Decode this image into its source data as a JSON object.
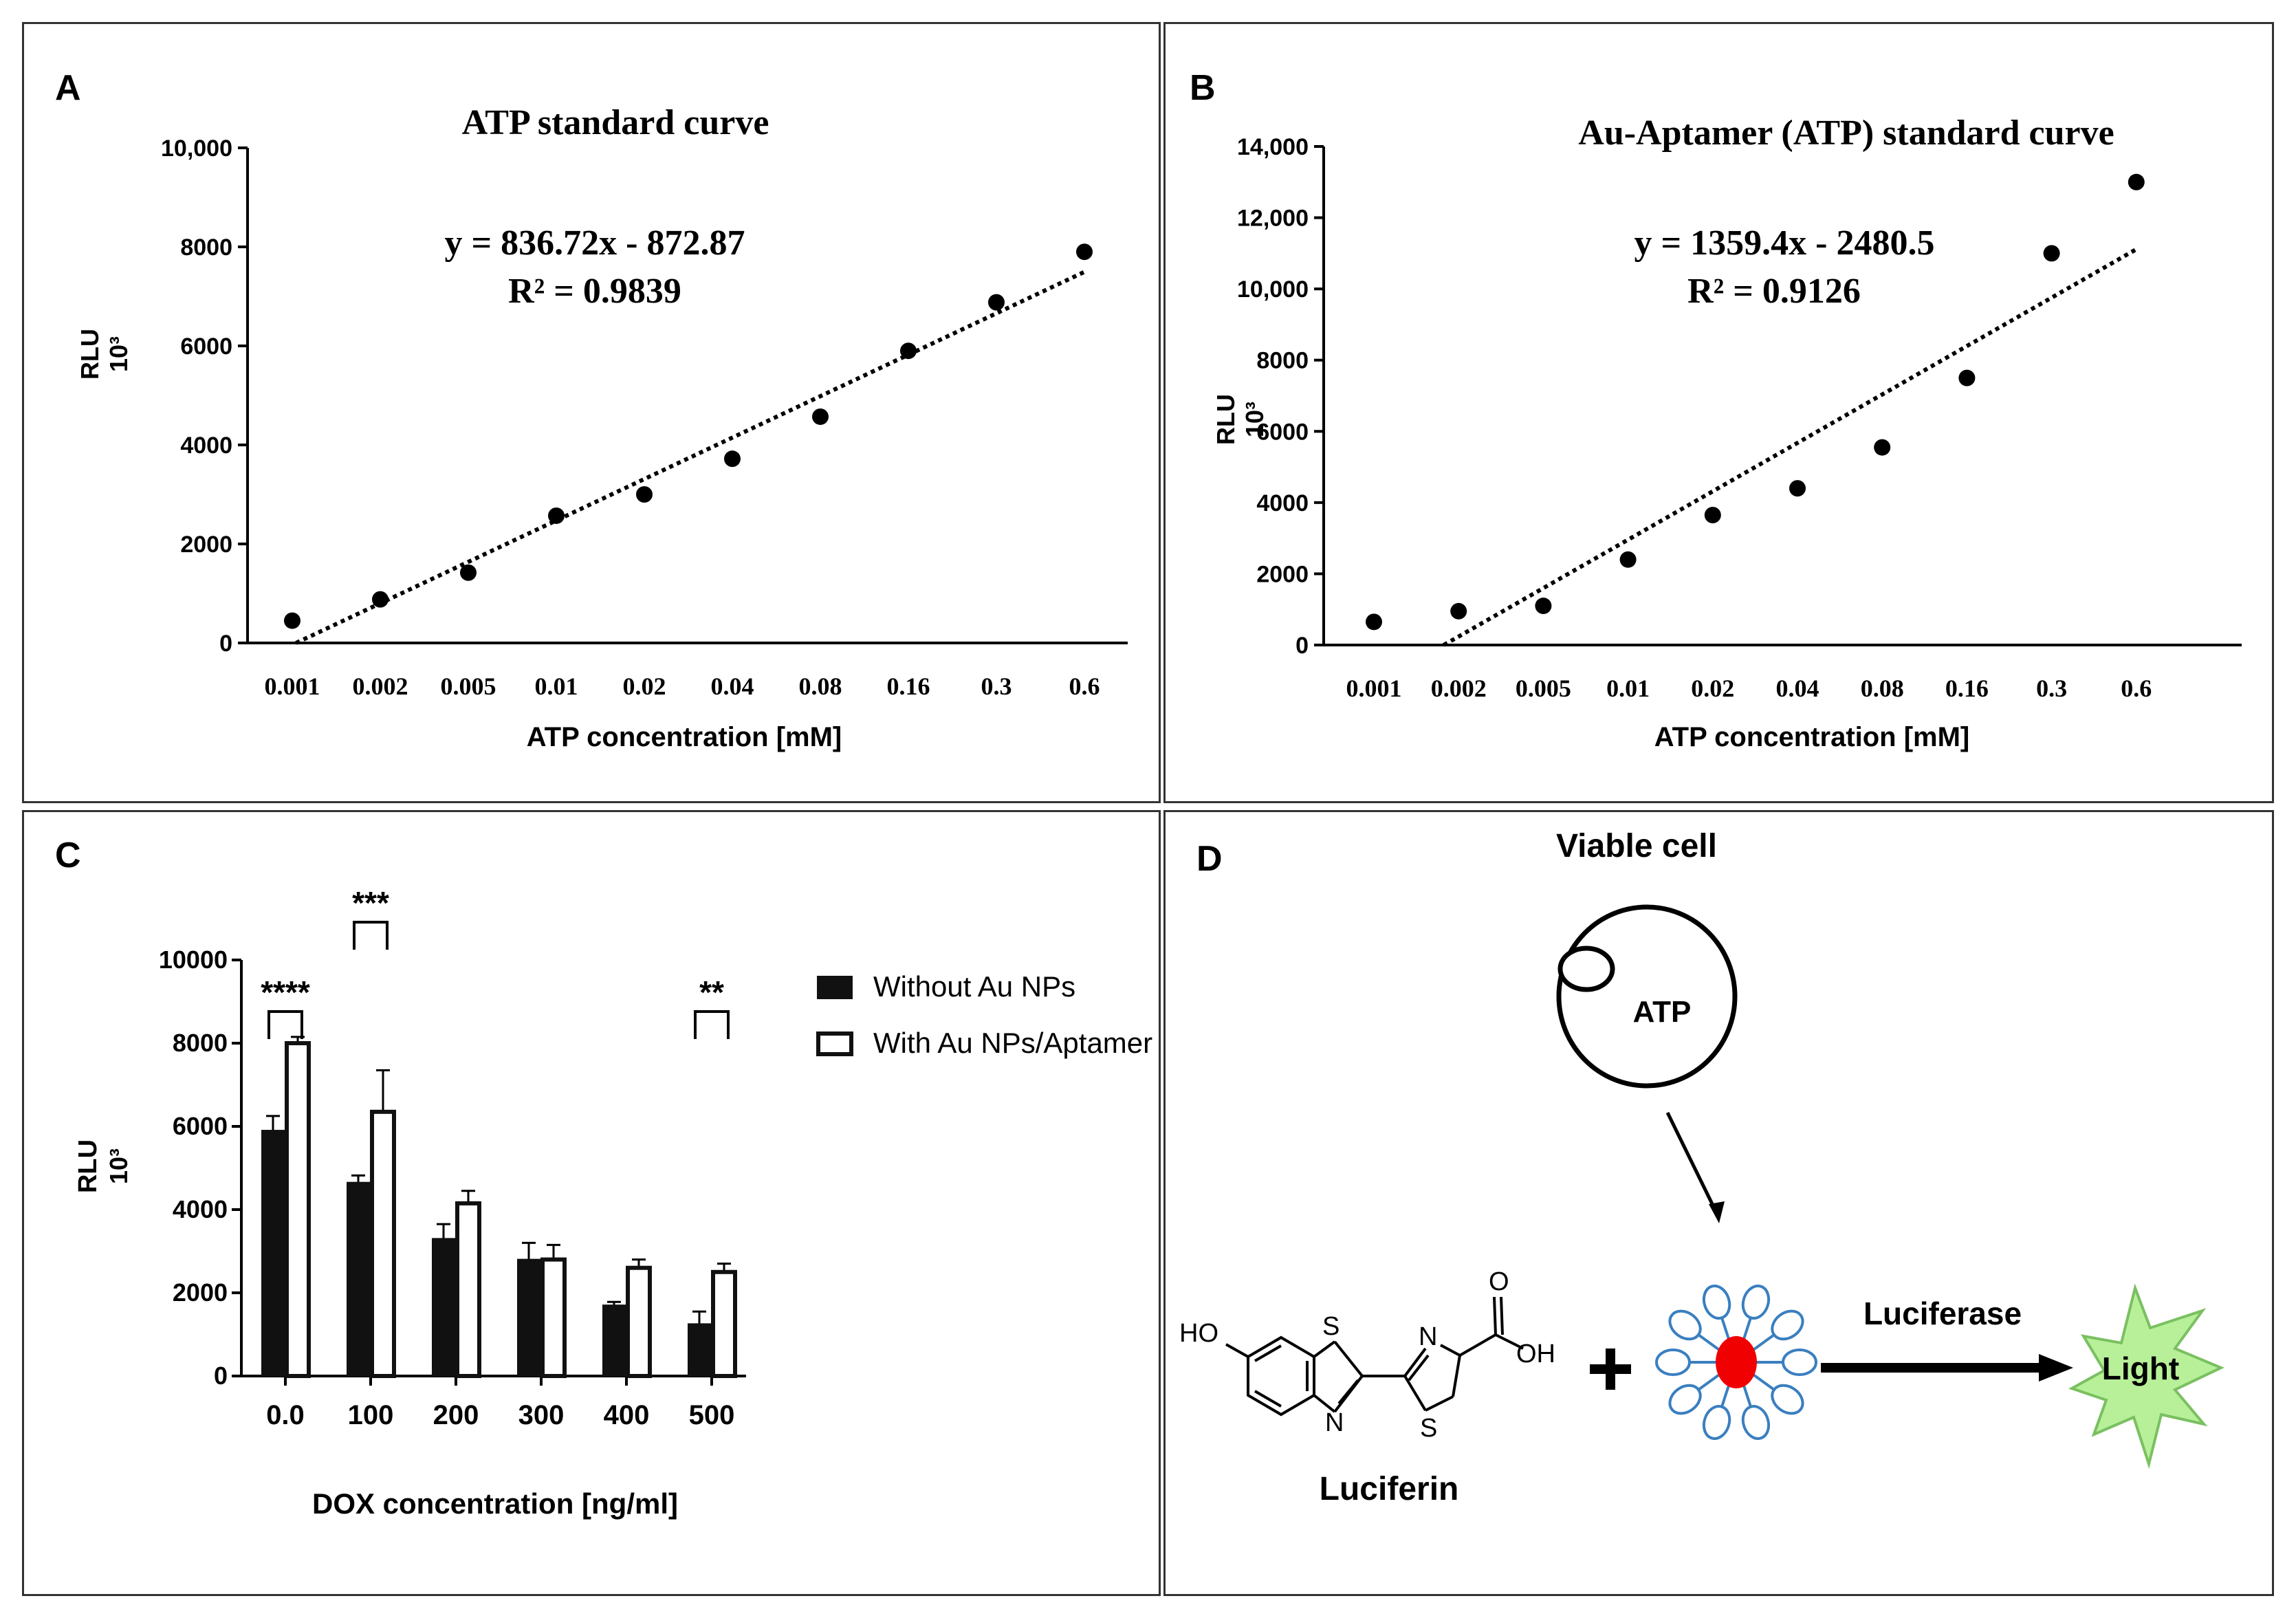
{
  "chart_data": [
    {
      "panel": "A",
      "type": "scatter",
      "title": "ATP standard curve",
      "xlabel": "ATP concentration [mM]",
      "ylabel": "RLU",
      "ylabel_unit": "10³",
      "categories": [
        "0.001",
        "0.002",
        "0.005",
        "0.01",
        "0.02",
        "0.04",
        "0.08",
        "0.16",
        "0.3",
        "0.6"
      ],
      "values": [
        450,
        880,
        1420,
        2570,
        3000,
        3720,
        4570,
        5900,
        6880,
        7900
      ],
      "trendline": {
        "equation": "y = 836.72x - 872.87",
        "r2": "R² = 0.9839",
        "slope": 836.72,
        "intercept": -872.87
      },
      "ylim": [
        0,
        10000
      ],
      "yticks": [
        0,
        2000,
        4000,
        6000,
        8000,
        10000
      ],
      "ytick_labels": [
        "0",
        "2000",
        "4000",
        "6000",
        "8000",
        "10,000"
      ]
    },
    {
      "panel": "B",
      "type": "scatter",
      "title": "Au-Aptamer  (ATP)  standard  curve",
      "xlabel": "ATP concentration [mM]",
      "ylabel": "RLU",
      "ylabel_unit": "10³",
      "categories": [
        "0.001",
        "0.002",
        "0.005",
        "0.01",
        "0.02",
        "0.04",
        "0.08",
        "0.16",
        "0.3",
        "0.6"
      ],
      "values": [
        650,
        950,
        1100,
        2400,
        3650,
        4400,
        5550,
        7500,
        11000,
        13000
      ],
      "trendline": {
        "equation": "y = 1359.4x - 2480.5",
        "r2": "R² = 0.9126",
        "slope": 1359.4,
        "intercept": -2480.5
      },
      "ylim": [
        0,
        14000
      ],
      "yticks": [
        0,
        2000,
        4000,
        6000,
        8000,
        10000,
        12000,
        14000
      ],
      "ytick_labels": [
        "0",
        "2000",
        "4000",
        "6000",
        "8000",
        "10,000",
        "12,000",
        "14,000"
      ]
    },
    {
      "panel": "C",
      "type": "bar",
      "xlabel": "DOX concentration [ng/ml]",
      "ylabel": "RLU",
      "ylabel_unit": "10³",
      "categories": [
        "0.0",
        "100",
        "200",
        "300",
        "400",
        "500"
      ],
      "series": [
        {
          "name": "Without Au NPs",
          "values": [
            5900,
            4650,
            3300,
            2800,
            1700,
            1250
          ],
          "errors": [
            350,
            170,
            350,
            400,
            80,
            300
          ]
        },
        {
          "name": "With Au NPs/Aptamer",
          "values": [
            8000,
            6350,
            4150,
            2800,
            2600,
            2500
          ],
          "errors": [
            150,
            1000,
            300,
            350,
            200,
            200
          ]
        }
      ],
      "ylim": [
        0,
        10000
      ],
      "yticks": [
        0,
        2000,
        4000,
        6000,
        8000,
        10000
      ],
      "ytick_labels": [
        "0",
        "2000",
        "4000",
        "6000",
        "8000",
        "10000"
      ],
      "significance": [
        {
          "category": "0.0",
          "label": "****"
        },
        {
          "category": "100",
          "label": "***"
        },
        {
          "category": "500",
          "label": "**"
        }
      ]
    }
  ],
  "panels": {
    "a": "A",
    "b": "B",
    "c": "C",
    "d": "D"
  },
  "diagram": {
    "cell_label": "Viable cell",
    "atp_label": "ATP",
    "luciferin_label": "Luciferin",
    "enzyme_label": "Luciferase",
    "light_label": "Light",
    "chem_ho": "HO",
    "chem_s1": "S",
    "chem_n1": "N",
    "chem_n2": "N",
    "chem_s2": "S",
    "chem_o": "O",
    "chem_oh": "OH"
  }
}
